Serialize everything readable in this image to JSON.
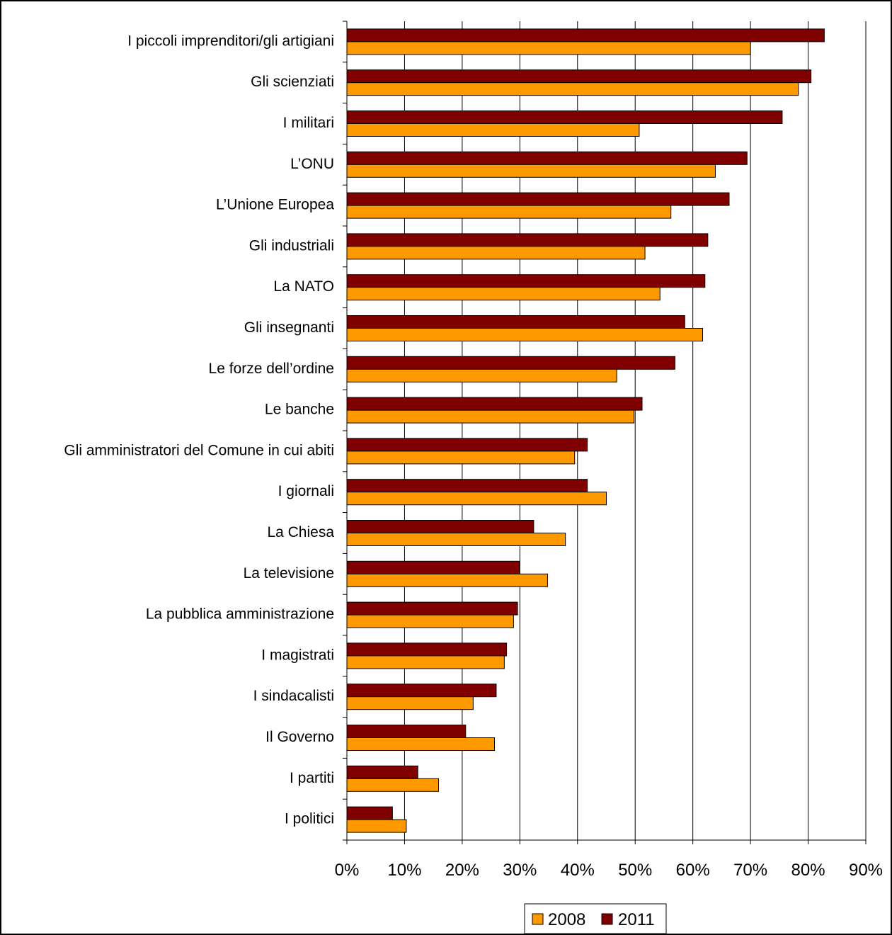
{
  "chart_data": {
    "type": "bar",
    "orientation": "horizontal",
    "categories": [
      "I piccoli imprenditori/gli artigiani",
      "Gli scienziati",
      "I militari",
      "L’ONU",
      "L’Unione Europea",
      "Gli industriali",
      "La NATO",
      "Gli insegnanti",
      "Le forze dell’ordine",
      "Le banche",
      "Gli amministratori del Comune in cui abiti",
      "I giornali",
      "La Chiesa",
      "La televisione",
      "La pubblica amministrazione",
      "I magistrati",
      "I sindacalisti",
      "Il Governo",
      "I partiti",
      "I politici"
    ],
    "series": [
      {
        "name": "2011",
        "color": "#800000",
        "values": [
          82.8,
          80.5,
          75.5,
          69.4,
          66.3,
          62.6,
          62.1,
          58.6,
          56.9,
          51.2,
          41.7,
          41.7,
          32.4,
          29.9,
          29.6,
          27.7,
          25.9,
          20.6,
          12.3,
          7.9
        ]
      },
      {
        "name": "2008",
        "color": "#FF9900",
        "values": [
          70.0,
          78.3,
          50.7,
          63.9,
          56.2,
          51.7,
          54.3,
          61.7,
          46.8,
          49.8,
          39.5,
          45.0,
          37.9,
          34.8,
          28.9,
          27.3,
          21.9,
          25.6,
          15.9,
          10.3
        ]
      }
    ],
    "x_ticks": [
      "0%",
      "10%",
      "20%",
      "30%",
      "40%",
      "50%",
      "60%",
      "70%",
      "80%",
      "90%"
    ],
    "xlim": [
      0,
      90
    ],
    "grid": true,
    "legend": {
      "position": "bottom",
      "order": [
        "2008",
        "2011"
      ]
    }
  }
}
